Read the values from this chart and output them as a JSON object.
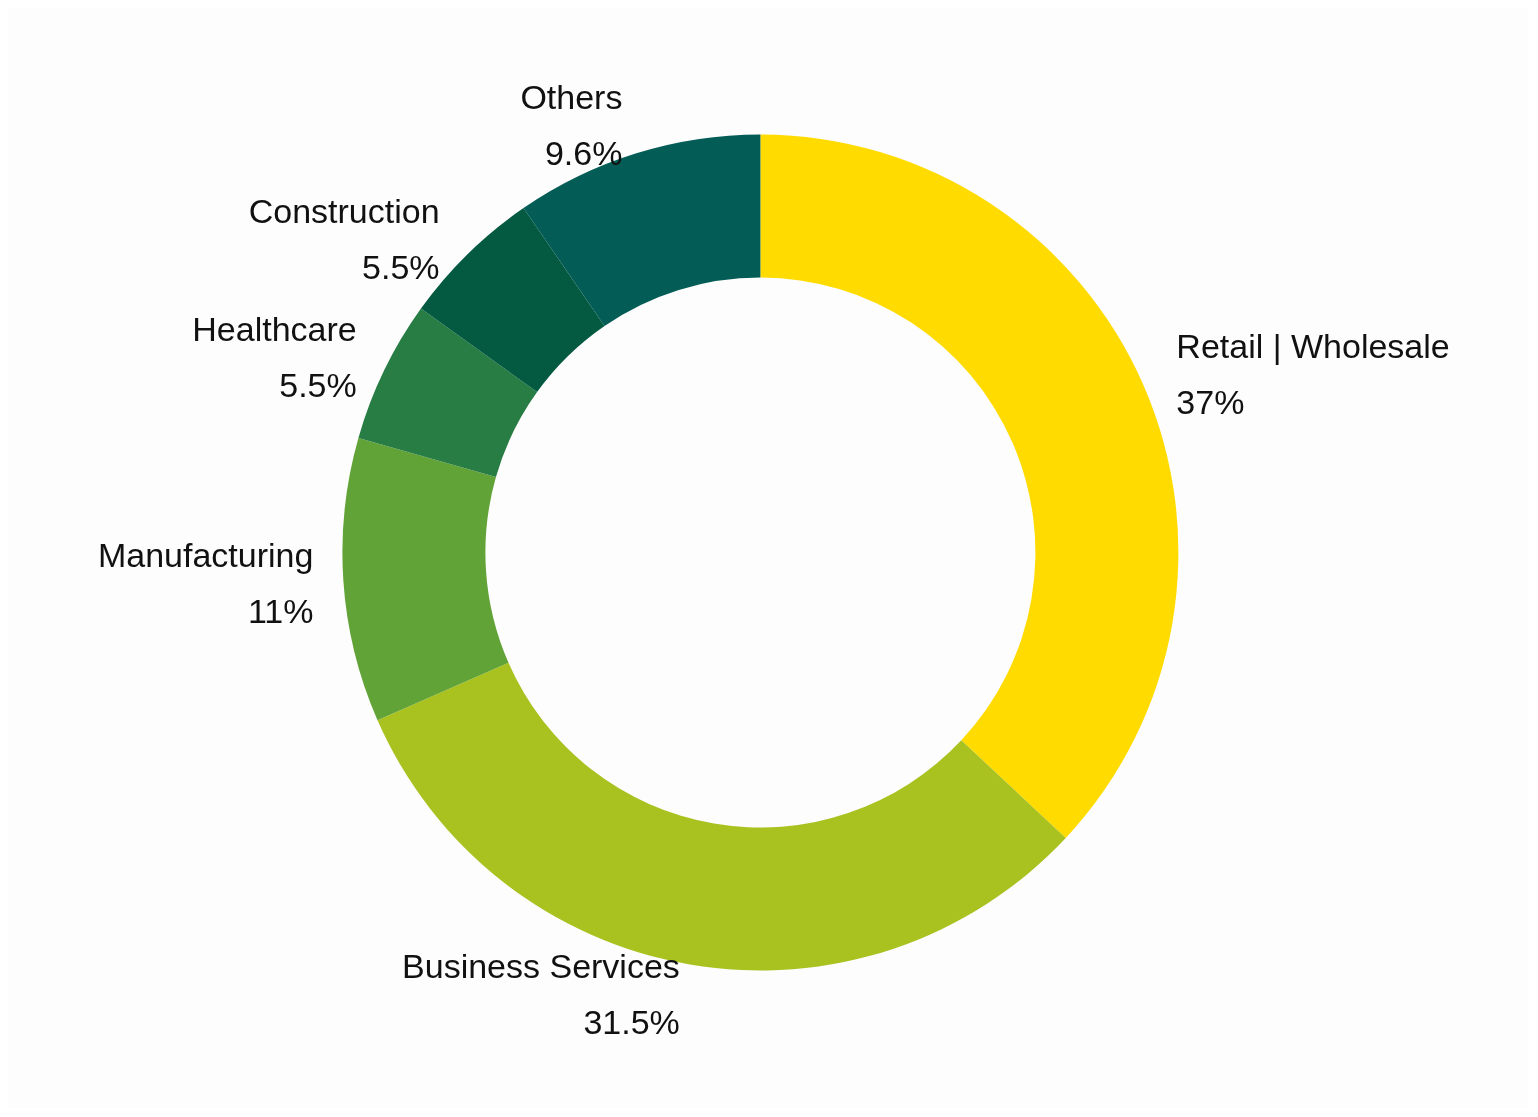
{
  "chart_data": {
    "type": "donut",
    "categories": [
      "Retail | Wholesale",
      "Business Services",
      "Manufacturing",
      "Healthcare",
      "Construction",
      "Others"
    ],
    "values": [
      37,
      31.5,
      11,
      5.5,
      5.5,
      9.6
    ],
    "colors": [
      "#ffdb00",
      "#a9c220",
      "#62a337",
      "#277d43",
      "#045a41",
      "#035c55"
    ],
    "value_labels": [
      "37%",
      "31.5%",
      "11%",
      "5.5%",
      "5.5%",
      "9.6%"
    ],
    "legend": false
  }
}
